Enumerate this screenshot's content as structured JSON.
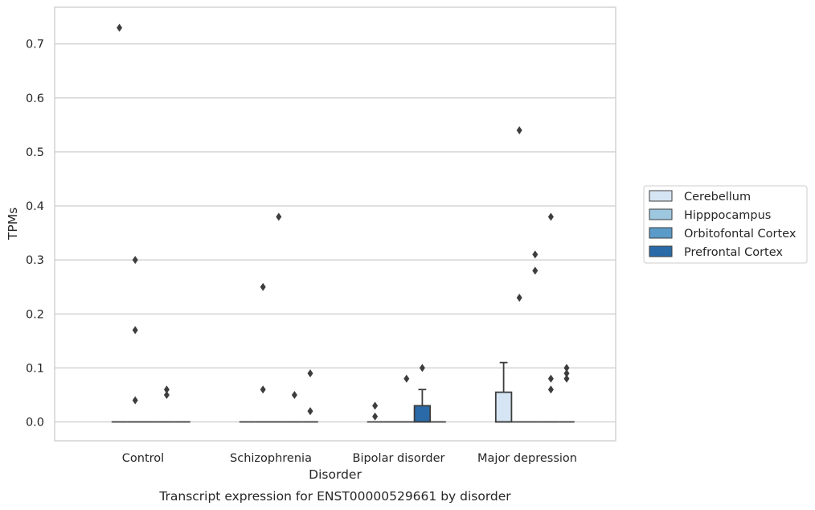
{
  "chart_data": {
    "type": "box",
    "caption": "Transcript expression for ENST00000529661 by disorder",
    "xlabel": "Disorder",
    "ylabel": "TPMs",
    "ylim": [
      -0.035,
      0.768
    ],
    "yticks": [
      0.0,
      0.1,
      0.2,
      0.3,
      0.4,
      0.5,
      0.6,
      0.7
    ],
    "ytick_labels": [
      "0.0",
      "0.1",
      "0.2",
      "0.3",
      "0.4",
      "0.5",
      "0.6",
      "0.7"
    ],
    "grid": "horizontal",
    "legend_position": "right",
    "categories": [
      "Control",
      "Schizophrenia",
      "Bipolar disorder",
      "Major depression"
    ],
    "series": [
      {
        "name": "Cerebellum",
        "color": "#d6e5f3",
        "boxes": [
          {
            "q1": 0,
            "median": 0,
            "q3": 0,
            "whisker_low": 0,
            "whisker_high": 0,
            "outliers": [
              0.73
            ]
          },
          {
            "q1": 0,
            "median": 0,
            "q3": 0,
            "whisker_low": 0,
            "whisker_high": 0,
            "outliers": []
          },
          {
            "q1": 0,
            "median": 0,
            "q3": 0,
            "whisker_low": 0,
            "whisker_high": 0,
            "outliers": [
              0.01,
              0.03
            ]
          },
          {
            "q1": 0,
            "median": 0,
            "q3": 0.055,
            "whisker_low": 0,
            "whisker_high": 0.11,
            "outliers": []
          }
        ]
      },
      {
        "name": "Hipppocampus",
        "color": "#9dc6df",
        "boxes": [
          {
            "q1": 0,
            "median": 0,
            "q3": 0,
            "whisker_low": 0,
            "whisker_high": 0,
            "outliers": [
              0.04,
              0.17,
              0.3
            ]
          },
          {
            "q1": 0,
            "median": 0,
            "q3": 0,
            "whisker_low": 0,
            "whisker_high": 0,
            "outliers": [
              0.06,
              0.25
            ]
          },
          {
            "q1": 0,
            "median": 0,
            "q3": 0,
            "whisker_low": 0,
            "whisker_high": 0,
            "outliers": []
          },
          {
            "q1": 0,
            "median": 0,
            "q3": 0,
            "whisker_low": 0,
            "whisker_high": 0,
            "outliers": [
              0.23,
              0.54
            ]
          }
        ]
      },
      {
        "name": "Orbitofontal Cortex",
        "color": "#5a9bc9",
        "boxes": [
          {
            "q1": 0,
            "median": 0,
            "q3": 0,
            "whisker_low": 0,
            "whisker_high": 0,
            "outliers": []
          },
          {
            "q1": 0,
            "median": 0,
            "q3": 0,
            "whisker_low": 0,
            "whisker_high": 0,
            "outliers": [
              0.38
            ]
          },
          {
            "q1": 0,
            "median": 0,
            "q3": 0,
            "whisker_low": 0,
            "whisker_high": 0,
            "outliers": [
              0.08
            ]
          },
          {
            "q1": 0,
            "median": 0,
            "q3": 0,
            "whisker_low": 0,
            "whisker_high": 0,
            "outliers": [
              0.28,
              0.31
            ]
          }
        ]
      },
      {
        "name": "Prefrontal Cortex",
        "color": "#2a6aa8",
        "boxes": [
          {
            "q1": 0,
            "median": 0,
            "q3": 0,
            "whisker_low": 0,
            "whisker_high": 0,
            "outliers": [
              0.05,
              0.06
            ]
          },
          {
            "q1": 0,
            "median": 0,
            "q3": 0,
            "whisker_low": 0,
            "whisker_high": 0,
            "outliers": [
              0.05
            ]
          },
          {
            "q1": 0,
            "median": 0,
            "q3": 0.03,
            "whisker_low": 0,
            "whisker_high": 0.06,
            "outliers": [
              0.1
            ]
          },
          {
            "q1": 0,
            "median": 0,
            "q3": 0,
            "whisker_low": 0,
            "whisker_high": 0,
            "outliers": [
              0.06,
              0.08,
              0.38
            ]
          }
        ]
      },
      {
        "name": "",
        "color": "#2a6aa8",
        "boxes": [
          {
            "q1": 0,
            "median": 0,
            "q3": 0,
            "whisker_low": 0,
            "whisker_high": 0,
            "outliers": []
          },
          {
            "q1": 0,
            "median": 0,
            "q3": 0,
            "whisker_low": 0,
            "whisker_high": 0,
            "outliers": [
              0.02,
              0.09
            ]
          },
          {
            "q1": 0,
            "median": 0,
            "q3": 0,
            "whisker_low": 0,
            "whisker_high": 0,
            "outliers": []
          },
          {
            "q1": 0,
            "median": 0,
            "q3": 0,
            "whisker_low": 0,
            "whisker_high": 0,
            "outliers": [
              0.08,
              0.09,
              0.1
            ]
          }
        ]
      }
    ]
  }
}
